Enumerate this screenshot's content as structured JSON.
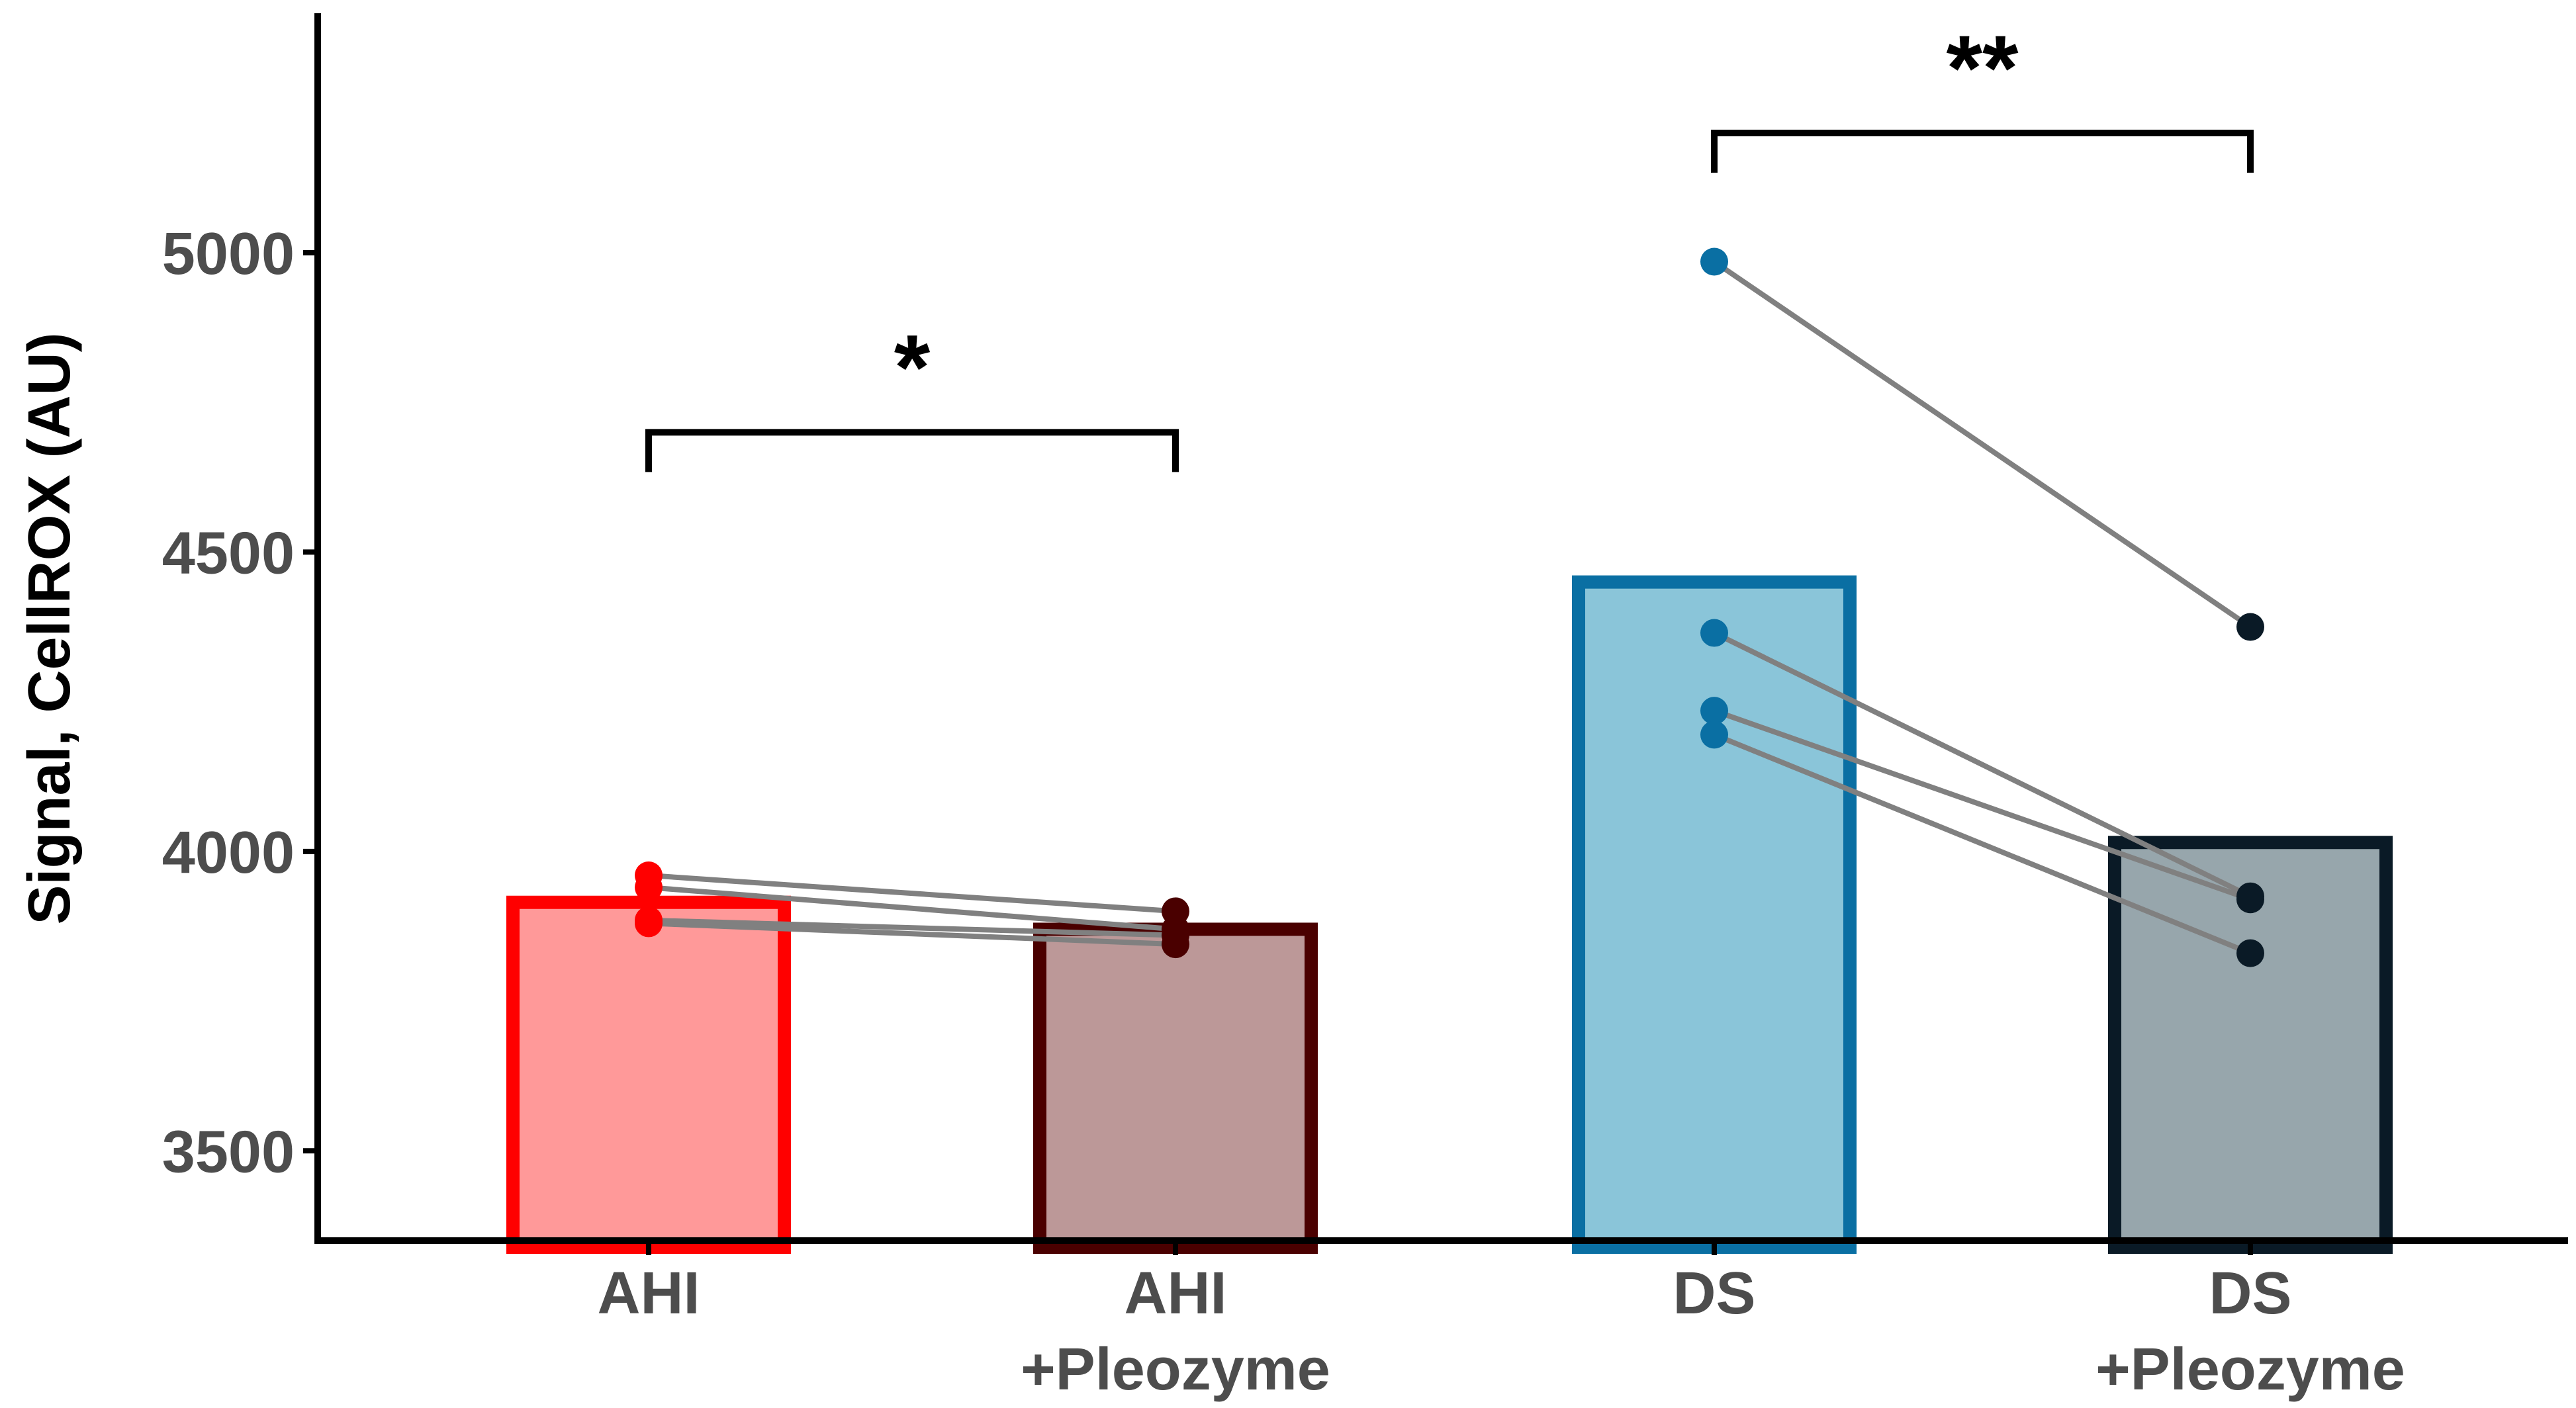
{
  "chart_data": {
    "type": "bar",
    "title": "",
    "xlabel": "",
    "ylabel": "Signal, CellROX (AU)",
    "ylim": [
      3350,
      5400
    ],
    "yticks": [
      3500,
      4000,
      4500,
      5000
    ],
    "categories": [
      {
        "line1": "AHI",
        "line2": ""
      },
      {
        "line1": "AHI",
        "line2": "+Pleozyme"
      },
      {
        "line1": "DS",
        "line2": ""
      },
      {
        "line1": "DS",
        "line2": "+Pleozyme"
      }
    ],
    "values": [
      3915,
      3870,
      4450,
      4015
    ],
    "bar_fills": [
      "#ff9999",
      "#bc9898",
      "#8ac5d9",
      "#97a6ac"
    ],
    "bar_edges": [
      "#ff0000",
      "#4a0000",
      "#0a6fa3",
      "#0a1a26"
    ],
    "point_colors": [
      "#ff0000",
      "#4a0000",
      "#0a6fa3",
      "#0a1a26"
    ],
    "line_color": "#808080",
    "paired_points": [
      {
        "bars": [
          0,
          1
        ],
        "pairs": [
          [
            3960,
            3900
          ],
          [
            3940,
            3870
          ],
          [
            3885,
            3860
          ],
          [
            3880,
            3845
          ]
        ]
      },
      {
        "bars": [
          2,
          3
        ],
        "pairs": [
          [
            4985,
            4375
          ],
          [
            4365,
            3925
          ],
          [
            4235,
            3920
          ],
          [
            4195,
            3830
          ]
        ]
      }
    ],
    "significance": [
      {
        "bars": [
          0,
          1
        ],
        "y": 4700,
        "label": "*"
      },
      {
        "bars": [
          2,
          3
        ],
        "y": 5200,
        "label": "**"
      }
    ]
  }
}
